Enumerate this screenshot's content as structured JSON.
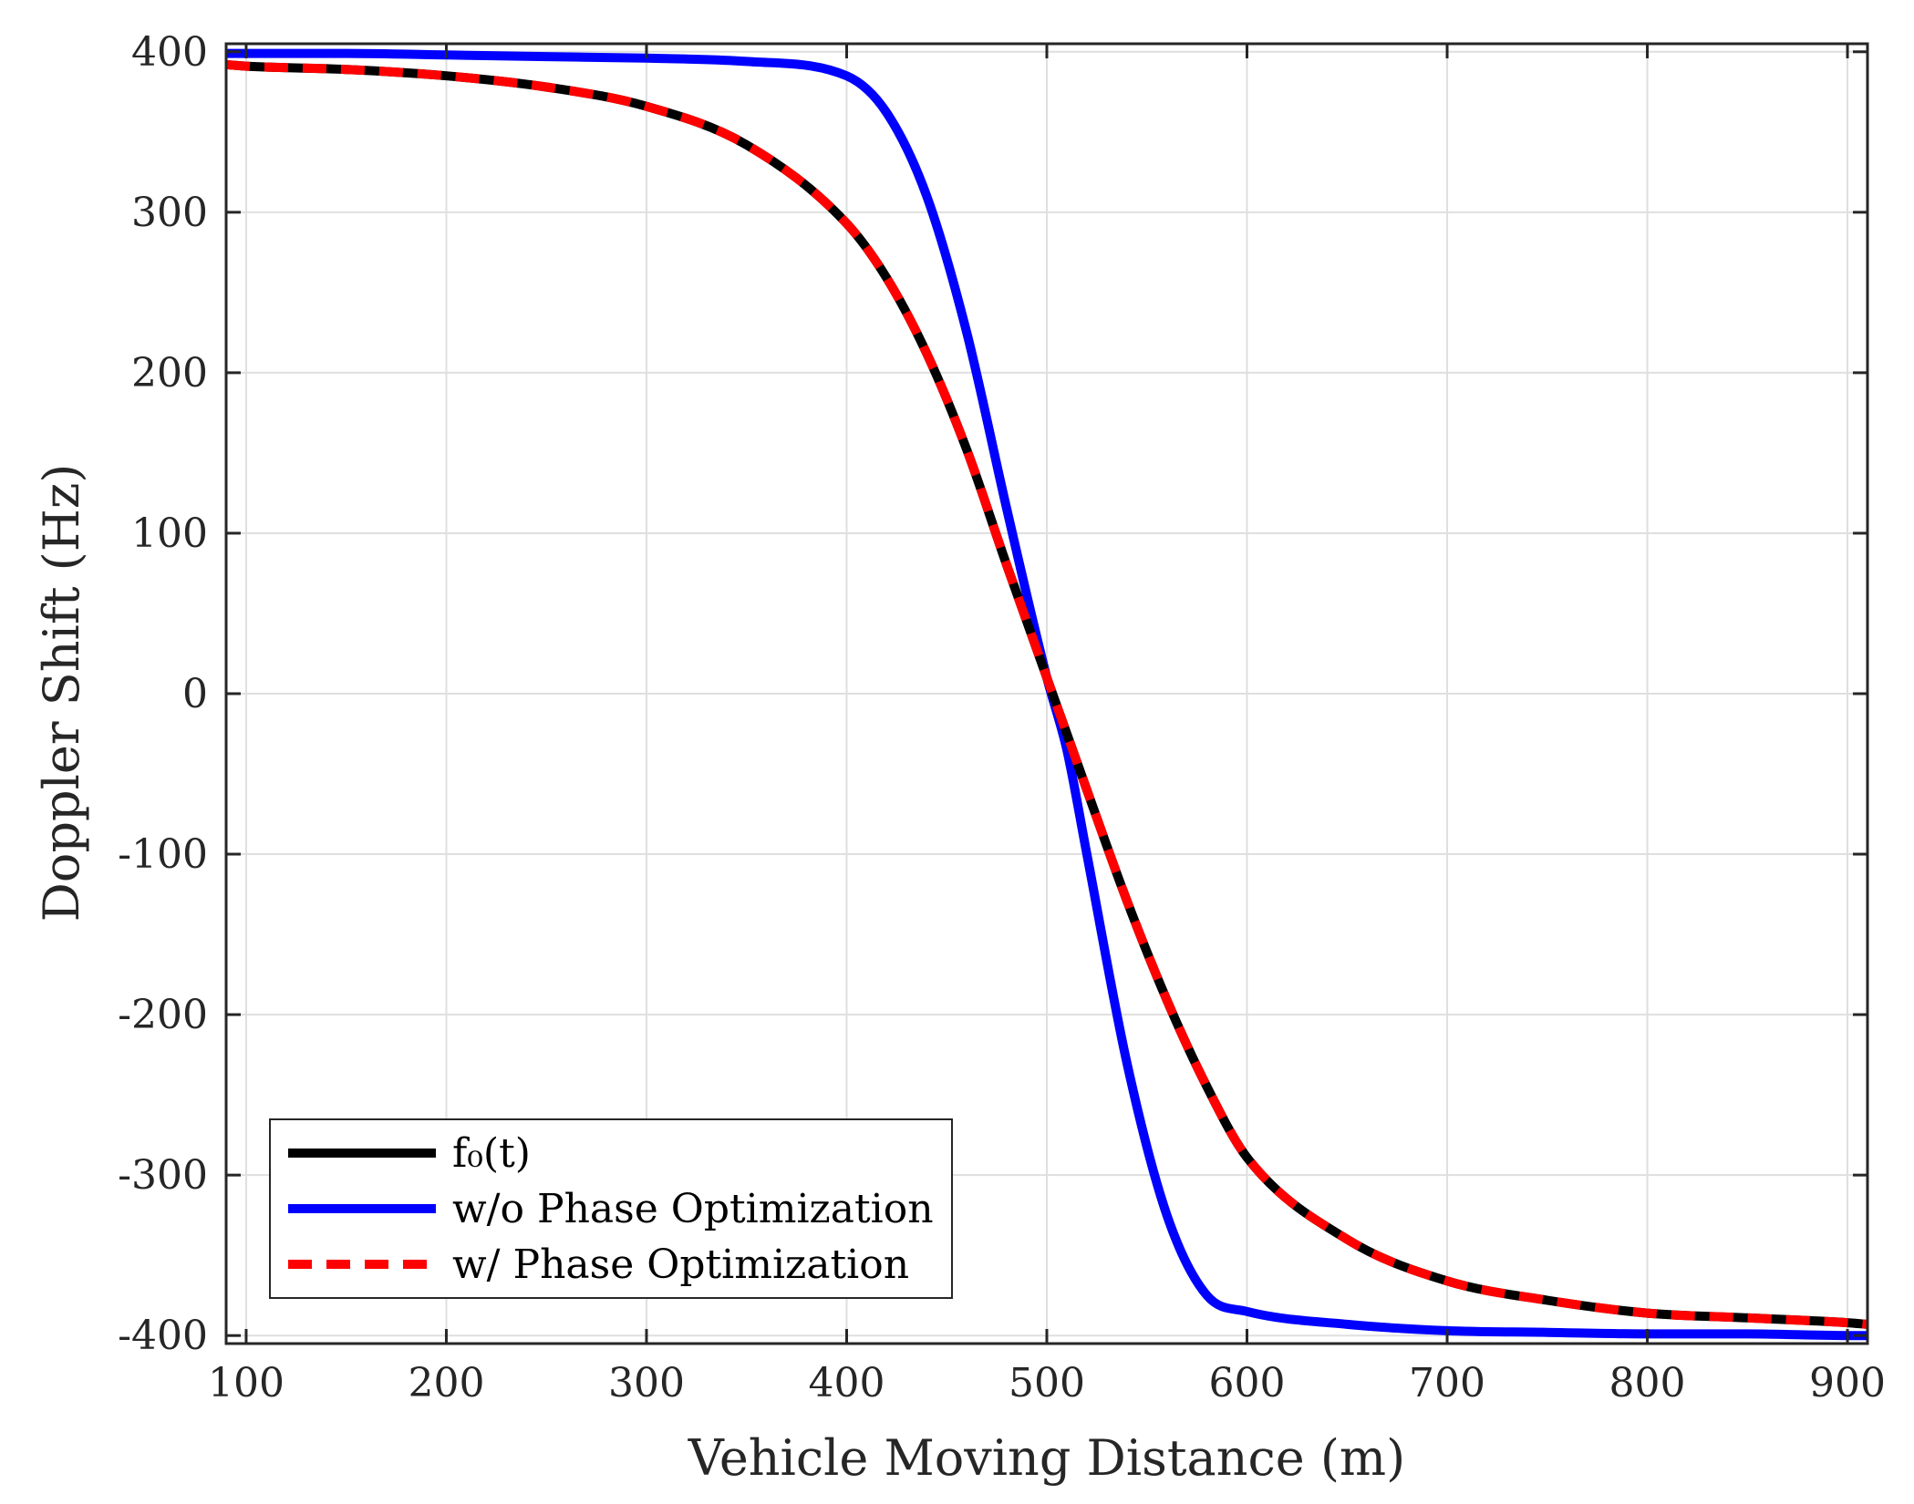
{
  "chart_data": {
    "type": "line",
    "xlabel": "Vehicle Moving Distance (m)",
    "ylabel": "Doppler Shift (Hz)",
    "xlim": [
      90,
      910
    ],
    "ylim": [
      -405,
      405
    ],
    "xticks": [
      100,
      200,
      300,
      400,
      500,
      600,
      700,
      800,
      900
    ],
    "yticks": [
      -400,
      -300,
      -200,
      -100,
      0,
      100,
      200,
      300,
      400
    ],
    "xtick_labels": [
      "100",
      "200",
      "300",
      "400",
      "500",
      "600",
      "700",
      "800",
      "900"
    ],
    "ytick_labels": [
      "-400",
      "-300",
      "-200",
      "-100",
      "0",
      "100",
      "200",
      "300",
      "400"
    ],
    "grid": true,
    "legend_position": "bottom-left",
    "x": [
      90,
      100,
      150,
      200,
      250,
      300,
      350,
      400,
      420,
      440,
      460,
      480,
      500,
      510,
      520,
      540,
      560,
      580,
      600,
      650,
      700,
      750,
      800,
      850,
      900,
      910
    ],
    "series": [
      {
        "name": "f0(t)",
        "legend_label": "f₀(t)",
        "color": "#000000",
        "style": "solid",
        "values": [
          392,
          391,
          389,
          385,
          378,
          366,
          342,
          293,
          259,
          212,
          152,
          80,
          10,
          -25,
          -60,
          -129,
          -191,
          -245,
          -289,
          -340,
          -366,
          -378,
          -386,
          -389,
          -392,
          -393
        ]
      },
      {
        "name": "w/o Phase Optimization",
        "legend_label": "w/o Phase Optimization",
        "color": "#0000ff",
        "style": "solid",
        "values": [
          399,
          399,
          399,
          398,
          397,
          396,
          394,
          385,
          362,
          310,
          225,
          115,
          10,
          -35,
          -100,
          -230,
          -325,
          -375,
          -385,
          -393,
          -397,
          -398,
          -399,
          -399,
          -400,
          -400
        ]
      },
      {
        "name": "w/ Phase Optimization",
        "legend_label": "w/ Phase Optimization",
        "color": "#ff0000",
        "style": "dashed",
        "values": [
          392,
          391,
          389,
          385,
          378,
          366,
          342,
          293,
          259,
          212,
          152,
          80,
          10,
          -25,
          -60,
          -129,
          -191,
          -245,
          -289,
          -340,
          -366,
          -378,
          -386,
          -389,
          -392,
          -393
        ]
      }
    ]
  }
}
